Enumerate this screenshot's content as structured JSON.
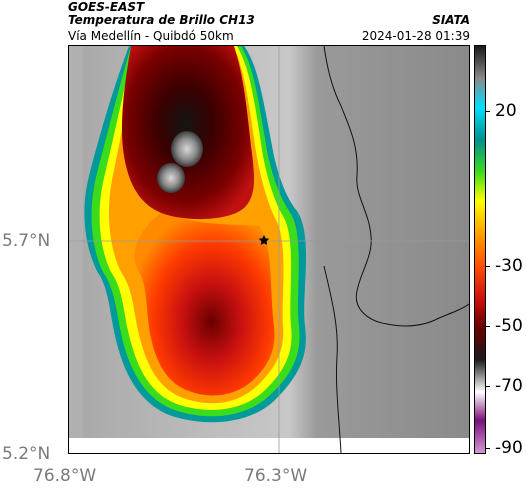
{
  "header": {
    "title1": "GOES-EAST",
    "title2": "Temperatura de Brillo CH13",
    "title3": "Vía Medellín - Quibdó 50km",
    "brand": "SIATA",
    "timestamp": "2024-01-28 01:39"
  },
  "axes": {
    "lat_ticks": [
      "5.7°N",
      "5.2°N"
    ],
    "lon_ticks": [
      "76.8°W",
      "76.3°W"
    ]
  },
  "colorbar": {
    "tick_labels": [
      "20",
      "-30",
      "-50",
      "-70",
      "-90"
    ],
    "colors": [
      "#d09bd0",
      "#7a107a",
      "#ffffff",
      "#1a1a1a",
      "#6a0000",
      "#d01010",
      "#ff5000",
      "#ffa000",
      "#ffff00",
      "#3bdc1a",
      "#009090",
      "#00e0ff",
      "#8a8a8a",
      "#1a1a1a"
    ]
  },
  "map": {
    "marker_icon": "star-icon",
    "gridlines": true
  }
}
